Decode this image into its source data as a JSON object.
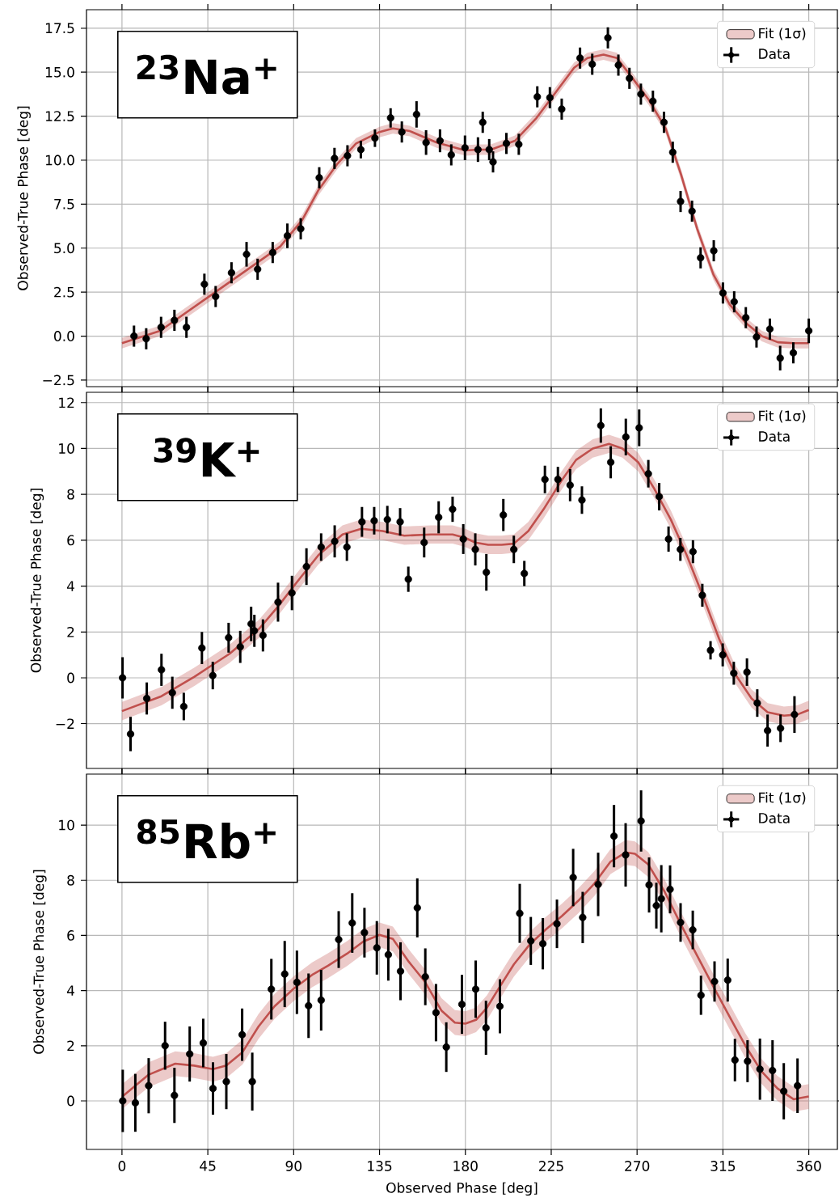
{
  "chart_data": [
    {
      "type": "scatter",
      "ylabel": "Observed-True Phase [deg]",
      "annotations": [
        "$^{23}$Na$^{+}$"
      ],
      "xlim": [
        -18.6,
        375
      ],
      "ylim": [
        -2.87,
        18.55
      ],
      "xticks": [
        0,
        45,
        90,
        135,
        180,
        225,
        270,
        315,
        360
      ],
      "yticks": [
        {
          "value": -2.5,
          "label": "−2.5"
        },
        {
          "value": 0,
          "label": "0.0"
        },
        {
          "value": 2.5,
          "label": "2.5"
        },
        {
          "value": 5,
          "label": "5.0"
        },
        {
          "value": 7.5,
          "label": "7.5"
        },
        {
          "value": 10,
          "label": "10.0"
        },
        {
          "value": 12.5,
          "label": "12.5"
        },
        {
          "value": 15,
          "label": "15.0"
        },
        {
          "value": 17.5,
          "label": "17.5"
        }
      ],
      "tick_labels": "y",
      "grid": true,
      "legend": "top right",
      "series": [
        {
          "name": "Fit (1σ)",
          "type": "line",
          "color": "#c0504d",
          "x": [
            0,
            20,
            45,
            66,
            83,
            94.5,
            103,
            113,
            122.7,
            135,
            142,
            150.9,
            165,
            180,
            186.6,
            193.4,
            206,
            217.3,
            227,
            237,
            244,
            252.4,
            259.5,
            268,
            276,
            285,
            293,
            301.5,
            310,
            318.5,
            327,
            335.4,
            343.8,
            352,
            360
          ],
          "values": [
            -0.4,
            0.3,
            2.2,
            3.8,
            5.1,
            6.6,
            8.3,
            9.8,
            10.95,
            11.6,
            11.8,
            11.65,
            11.0,
            10.55,
            10.6,
            10.6,
            11.1,
            12.4,
            13.8,
            15.25,
            15.8,
            16.0,
            15.8,
            14.6,
            13.45,
            11.8,
            9.2,
            6.1,
            3.5,
            1.8,
            0.75,
            0,
            -0.35,
            -0.4,
            -0.4
          ],
          "lower": [
            -0.7,
            0,
            1.9,
            3.5,
            4.8,
            6.3,
            8,
            9.5,
            10.65,
            11.3,
            11.5,
            11.35,
            10.7,
            10.25,
            10.3,
            10.3,
            10.8,
            12.1,
            13.5,
            14.95,
            15.5,
            15.7,
            15.5,
            14.3,
            13.15,
            11.5,
            8.9,
            5.8,
            3.2,
            1.5,
            0.45,
            -0.3,
            -0.65,
            -0.7,
            -0.7
          ],
          "upper": [
            -0.1,
            0.6,
            2.5,
            4.1,
            5.4,
            6.9,
            8.6,
            10.1,
            11.25,
            11.9,
            12.1,
            11.95,
            11.3,
            10.85,
            10.9,
            10.9,
            11.4,
            12.7,
            14.1,
            15.55,
            16.1,
            16.3,
            16.1,
            14.9,
            13.75,
            12.1,
            9.5,
            6.4,
            3.8,
            2.1,
            1.05,
            0.3,
            -0.05,
            -0.1,
            -0.1
          ]
        },
        {
          "name": "Data",
          "color": "#000000",
          "marker": "circle",
          "x": [
            6.3,
            12.7,
            20.5,
            27.5,
            33.8,
            43.2,
            49.1,
            57.4,
            65.3,
            71.1,
            79.0,
            86.7,
            93.7,
            103.4,
            111.4,
            118.2,
            125.2,
            132.6,
            140.8,
            146.7,
            154.4,
            159.4,
            166.7,
            172.6,
            179.8,
            186.6,
            189.1,
            192.5,
            194.5,
            201.5,
            208,
            217.7,
            224.3,
            230.5,
            240.1,
            246.5,
            254.7,
            260.2,
            266,
            272,
            278.3,
            284.1,
            288.7,
            292.8,
            298.8,
            303.3,
            310.2,
            315,
            320.9,
            327,
            332.6,
            339.6,
            345,
            351.9,
            360
          ],
          "values": [
            0.0,
            -0.15,
            0.5,
            0.9,
            0.5,
            2.95,
            2.25,
            3.6,
            4.65,
            3.8,
            4.75,
            5.7,
            6.1,
            9.0,
            10.1,
            10.25,
            10.6,
            11.25,
            12.4,
            11.6,
            12.6,
            11.0,
            11.1,
            10.3,
            10.7,
            10.6,
            12.15,
            10.6,
            9.9,
            10.95,
            10.9,
            13.6,
            13.55,
            12.9,
            15.8,
            15.45,
            16.95,
            15.4,
            14.65,
            13.75,
            13.35,
            12.15,
            10.45,
            7.65,
            7.1,
            4.45,
            4.85,
            2.45,
            1.95,
            1.05,
            -0.05,
            0.4,
            -1.25,
            -0.95,
            0.3
          ],
          "errors": [
            0.6,
            0.6,
            0.6,
            0.6,
            0.6,
            0.6,
            0.6,
            0.6,
            0.7,
            0.6,
            0.6,
            0.7,
            0.6,
            0.6,
            0.6,
            0.6,
            0.5,
            0.5,
            0.55,
            0.6,
            0.75,
            0.7,
            0.65,
            0.6,
            0.7,
            0.7,
            0.6,
            0.6,
            0.6,
            0.6,
            0.6,
            0.6,
            0.6,
            0.6,
            0.6,
            0.6,
            0.6,
            0.6,
            0.6,
            0.6,
            0.6,
            0.6,
            0.6,
            0.6,
            0.6,
            0.6,
            0.6,
            0.6,
            0.6,
            0.6,
            0.6,
            0.6,
            0.7,
            0.6,
            0.7
          ]
        }
      ]
    },
    {
      "type": "scatter",
      "ylabel": "Observed-True Phase [deg]",
      "annotations": [
        "$^{39}$K$^{+}$"
      ],
      "xlim": [
        -18.6,
        375
      ],
      "ylim": [
        -3.95,
        12.45
      ],
      "xticks": [
        0,
        45,
        90,
        135,
        180,
        225,
        270,
        315,
        360
      ],
      "yticks": [
        {
          "value": -2,
          "label": "−2"
        },
        0,
        2,
        4,
        6,
        8,
        10,
        12
      ],
      "tick_labels": "y",
      "grid": true,
      "legend": "top right",
      "series": [
        {
          "name": "Fit (1σ)",
          "type": "line",
          "color": "#c0504d",
          "x": [
            0,
            20.7,
            38,
            56.4,
            72,
            81.7,
            91.5,
            103,
            115.6,
            125.4,
            136.6,
            148,
            162,
            173.3,
            180,
            185.2,
            192,
            199,
            205.4,
            213,
            221,
            230,
            238,
            246.8,
            255.3,
            262.3,
            270.6,
            279,
            287.7,
            296,
            304.6,
            313,
            321.5,
            330,
            338.4,
            347,
            354,
            360
          ],
          "values": [
            -1.45,
            -0.8,
            0.05,
            1.05,
            2.15,
            3.1,
            4.15,
            5.35,
            6.25,
            6.5,
            6.4,
            6.2,
            6.25,
            6.25,
            6.1,
            5.9,
            5.8,
            5.8,
            5.85,
            6.4,
            7.35,
            8.55,
            9.5,
            10.0,
            10.2,
            10.0,
            9.4,
            8.25,
            6.9,
            5.35,
            3.55,
            1.7,
            0.15,
            -0.9,
            -1.5,
            -1.65,
            -1.6,
            -1.4
          ],
          "lower": [
            -1.85,
            -1.2,
            -0.35,
            0.65,
            1.75,
            2.7,
            3.75,
            4.95,
            5.85,
            6.1,
            6.0,
            5.8,
            5.85,
            5.85,
            5.7,
            5.5,
            5.4,
            5.4,
            5.45,
            6.0,
            6.95,
            8.15,
            9.1,
            9.6,
            9.8,
            9.6,
            9.0,
            7.85,
            6.5,
            4.95,
            3.15,
            1.3,
            -0.25,
            -1.3,
            -1.9,
            -2.05,
            -2.0,
            -1.8
          ],
          "upper": [
            -1.05,
            -0.4,
            0.45,
            1.45,
            2.55,
            3.5,
            4.55,
            5.75,
            6.65,
            6.9,
            6.8,
            6.6,
            6.65,
            6.65,
            6.5,
            6.3,
            6.2,
            6.2,
            6.25,
            6.8,
            7.75,
            8.95,
            9.9,
            10.4,
            10.6,
            10.4,
            9.8,
            8.65,
            7.3,
            5.75,
            3.95,
            2.1,
            0.55,
            -0.5,
            -1.1,
            -1.25,
            -1.2,
            -1.0
          ]
        },
        {
          "name": "Data",
          "color": "#000000",
          "marker": "circle",
          "x": [
            0.3,
            4.5,
            13,
            20.7,
            26.4,
            32.4,
            41.9,
            47.6,
            55.9,
            62,
            67.7,
            69.4,
            73.9,
            81.8,
            89.1,
            96.7,
            104.4,
            111.5,
            117.9,
            125.8,
            132.2,
            139.1,
            145.8,
            150.1,
            158.4,
            166,
            173.3,
            178.9,
            185.2,
            191,
            199.9,
            205.4,
            210.9,
            221.7,
            228.5,
            234.9,
            241.1,
            251,
            256.2,
            264.1,
            271.1,
            275.9,
            281.6,
            286.5,
            292.7,
            299.3,
            304.2,
            308.5,
            314.9,
            320.7,
            327.6,
            333,
            338.4,
            345.2,
            352.5
          ],
          "values": [
            0.0,
            -2.45,
            -0.9,
            0.35,
            -0.65,
            -1.25,
            1.3,
            0.1,
            1.75,
            1.35,
            2.35,
            2.05,
            1.85,
            3.3,
            3.7,
            4.85,
            5.7,
            5.95,
            5.7,
            6.8,
            6.85,
            6.9,
            6.8,
            4.3,
            5.9,
            7.0,
            7.35,
            6.05,
            5.6,
            4.6,
            7.1,
            5.6,
            4.55,
            8.65,
            8.65,
            8.4,
            7.75,
            11.0,
            9.4,
            10.5,
            10.9,
            8.9,
            7.9,
            6.05,
            5.6,
            5.5,
            3.6,
            1.2,
            1.0,
            0.2,
            0.25,
            -1.1,
            -2.3,
            -2.2,
            -1.6
          ],
          "errors": [
            0.9,
            0.75,
            0.7,
            0.7,
            0.7,
            0.6,
            0.7,
            0.6,
            0.65,
            0.7,
            0.75,
            0.7,
            0.7,
            0.85,
            0.75,
            0.8,
            0.6,
            0.7,
            0.6,
            0.65,
            0.6,
            0.6,
            0.6,
            0.55,
            0.65,
            0.7,
            0.55,
            0.65,
            0.7,
            0.8,
            0.7,
            0.6,
            0.55,
            0.6,
            0.55,
            0.7,
            0.6,
            0.75,
            0.7,
            0.8,
            0.8,
            0.6,
            0.6,
            0.55,
            0.5,
            0.5,
            0.5,
            0.4,
            0.5,
            0.5,
            0.6,
            0.6,
            0.7,
            0.6,
            0.8
          ]
        }
      ]
    },
    {
      "type": "scatter",
      "xlabel": "Observed Phase [deg]",
      "ylabel": "Observed-True Phase [deg]",
      "annotations": [
        "$^{85}$Rb$^{+}$"
      ],
      "xlim": [
        -18.6,
        375
      ],
      "ylim": [
        -1.76,
        11.85
      ],
      "xticks": [
        0,
        45,
        90,
        135,
        180,
        225,
        270,
        315,
        360
      ],
      "yticks": [
        0,
        2,
        4,
        6,
        8,
        10
      ],
      "grid": true,
      "legend": "top right",
      "series": [
        {
          "name": "Fit (1σ)",
          "type": "line",
          "color": "#c0504d",
          "x": [
            0,
            14,
            27.9,
            37.8,
            47.7,
            54.7,
            63.2,
            71.6,
            80,
            90,
            99.7,
            108,
            118,
            126.5,
            135,
            142,
            150.4,
            158.9,
            167.4,
            174.5,
            180,
            185.6,
            191.3,
            198.3,
            205.4,
            213.8,
            222.2,
            230.7,
            239.1,
            247.6,
            256,
            264,
            268.9,
            275.9,
            284.4,
            292.8,
            301.3,
            309.8,
            318.2,
            326.7,
            335.1,
            343.6,
            352,
            360
          ],
          "values": [
            0.15,
            0.95,
            1.35,
            1.28,
            1.15,
            1.28,
            1.77,
            2.7,
            3.43,
            4.07,
            4.57,
            4.9,
            5.34,
            5.78,
            6.02,
            5.87,
            5.04,
            4.31,
            3.28,
            2.84,
            2.8,
            2.94,
            3.38,
            4.17,
            4.95,
            5.68,
            6.22,
            6.71,
            7.25,
            7.88,
            8.67,
            9.01,
            8.96,
            8.57,
            7.59,
            6.42,
            5.29,
            4.17,
            3.09,
            2.01,
            1.08,
            0.45,
            0.06,
            0.16
          ],
          "lower": [
            -0.3,
            0.5,
            0.9,
            0.83,
            0.7,
            0.83,
            1.32,
            2.25,
            2.98,
            3.62,
            4.12,
            4.45,
            4.89,
            5.33,
            5.57,
            5.42,
            4.59,
            3.86,
            2.83,
            2.39,
            2.35,
            2.49,
            2.93,
            3.72,
            4.5,
            5.23,
            5.77,
            6.26,
            6.8,
            7.43,
            8.22,
            8.56,
            8.51,
            8.12,
            7.14,
            5.97,
            4.84,
            3.72,
            2.64,
            1.56,
            0.63,
            0,
            -0.39,
            -0.29
          ],
          "upper": [
            0.6,
            1.4,
            1.8,
            1.73,
            1.6,
            1.73,
            2.22,
            3.15,
            3.88,
            4.52,
            5.02,
            5.35,
            5.79,
            6.23,
            6.47,
            6.32,
            5.49,
            4.76,
            3.73,
            3.29,
            3.25,
            3.39,
            3.83,
            4.62,
            5.4,
            6.13,
            6.67,
            7.16,
            7.7,
            8.33,
            9.12,
            9.46,
            9.41,
            9.02,
            8.04,
            6.87,
            5.74,
            4.62,
            3.54,
            2.46,
            1.53,
            0.9,
            0.51,
            0.61
          ]
        },
        {
          "name": "Data",
          "color": "#000000",
          "marker": "circle",
          "x": [
            0.4,
            7,
            14,
            22.6,
            27.5,
            35.5,
            42.6,
            47.7,
            54.7,
            63,
            68.3,
            78.3,
            85.3,
            91.7,
            97.8,
            104.4,
            113.6,
            120.7,
            127.1,
            133.6,
            139.6,
            146,
            154.8,
            159,
            164.6,
            170,
            178.2,
            185.4,
            190.8,
            198.1,
            208.5,
            214.3,
            220.6,
            228,
            236.5,
            241.5,
            249.6,
            257.9,
            264,
            272.1,
            276.3,
            280.1,
            282.7,
            287.3,
            292.8,
            299.2,
            303.5,
            310.6,
            317.5,
            321.3,
            327.9,
            334.4,
            341,
            346.9,
            354.1
          ],
          "values": [
            0.0,
            -0.07,
            0.55,
            2.0,
            0.2,
            1.7,
            2.1,
            0.45,
            0.7,
            2.4,
            0.7,
            4.05,
            4.6,
            4.3,
            3.45,
            3.65,
            5.85,
            6.45,
            6.1,
            5.55,
            5.3,
            4.7,
            7.0,
            4.5,
            3.2,
            1.95,
            3.5,
            4.05,
            2.65,
            3.43,
            6.8,
            5.8,
            5.7,
            6.42,
            8.1,
            6.65,
            7.85,
            9.6,
            8.92,
            10.15,
            7.83,
            7.08,
            7.33,
            7.67,
            6.47,
            6.2,
            3.83,
            4.33,
            4.38,
            1.48,
            1.44,
            1.15,
            1.1,
            0.35,
            0.55
          ],
          "errors": [
            1.13,
            1.05,
            1.0,
            0.87,
            1.0,
            1.0,
            0.88,
            0.95,
            1.0,
            0.95,
            1.05,
            1.1,
            1.2,
            1.15,
            1.17,
            1.1,
            1.03,
            1.08,
            0.9,
            0.97,
            0.94,
            1.05,
            1.07,
            1.03,
            1.04,
            0.9,
            1.07,
            1.04,
            0.98,
            0.98,
            1.07,
            0.87,
            0.93,
            0.88,
            1.04,
            0.93,
            1.15,
            1.13,
            1.15,
            1.11,
            1.0,
            0.83,
            1.22,
            0.87,
            0.7,
            0.7,
            0.71,
            0.73,
            0.78,
            0.77,
            0.76,
            1.11,
            1.1,
            1.02,
            0.99
          ]
        }
      ]
    }
  ]
}
